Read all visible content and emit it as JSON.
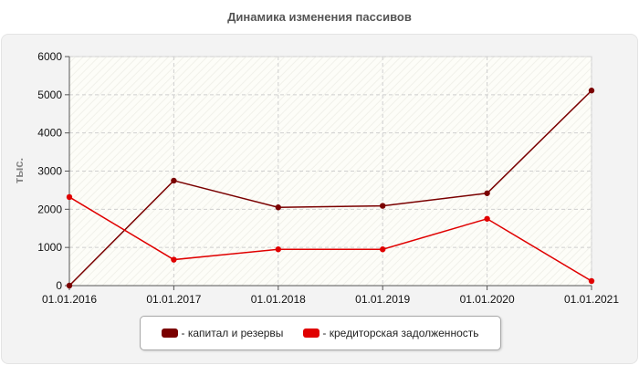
{
  "chart_data": {
    "type": "line",
    "title": "Динамика изменения пассивов",
    "ylabel": "тыс.",
    "xlabel": "",
    "x": [
      "01.01.2016",
      "01.01.2017",
      "01.01.2018",
      "01.01.2019",
      "01.01.2020",
      "01.01.2021"
    ],
    "ylim": [
      0,
      6000
    ],
    "yticks": [
      0,
      1000,
      2000,
      3000,
      4000,
      5000,
      6000
    ],
    "grid": true,
    "legend_position": "bottom",
    "series": [
      {
        "name": "капитал и резервы",
        "color": "#7a0000",
        "values": [
          0,
          2750,
          2050,
          2090,
          2420,
          5110
        ]
      },
      {
        "name": "кредиторская задолженность",
        "color": "#e00000",
        "values": [
          2320,
          680,
          950,
          950,
          1750,
          120
        ]
      }
    ]
  },
  "legend": {
    "items": [
      {
        "label": "- капитал и резервы",
        "color": "#7a0000"
      },
      {
        "label": "- кредиторская задолженность",
        "color": "#e00000"
      }
    ]
  }
}
